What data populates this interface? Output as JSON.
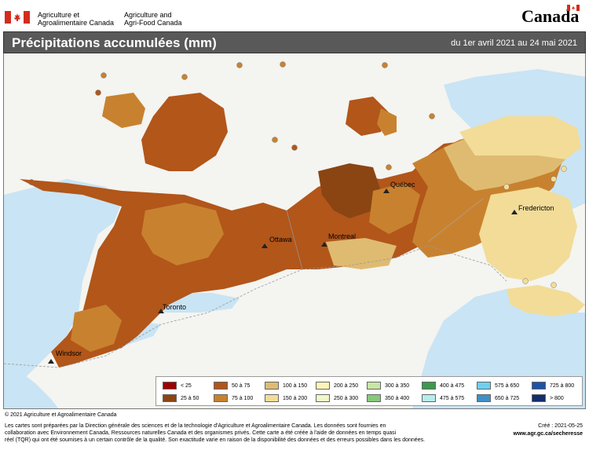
{
  "header": {
    "department_fr_line1": "Agriculture et",
    "department_fr_line2": "Agroalimentaire Canada",
    "department_en_line1": "Agriculture and",
    "department_en_line2": "Agri-Food Canada",
    "wordmark": "Canada"
  },
  "title": "Précipitations accumulées (mm)",
  "date_range": "du 1er avril 2021 au 24 mai 2021",
  "cities": [
    {
      "name": "Québec"
    },
    {
      "name": "Fredericton"
    },
    {
      "name": "Ottawa"
    },
    {
      "name": "Montreal"
    },
    {
      "name": "Toronto"
    },
    {
      "name": "Windsor"
    }
  ],
  "legend": {
    "items": [
      {
        "label": "< 25",
        "color": "#9c0000"
      },
      {
        "label": "25 à 50",
        "color": "#8a4513"
      },
      {
        "label": "50 à 75",
        "color": "#b2561a"
      },
      {
        "label": "75 à 100",
        "color": "#c8822f"
      },
      {
        "label": "100 à 150",
        "color": "#dfbb72"
      },
      {
        "label": "150 à 200",
        "color": "#f2dc98"
      },
      {
        "label": "200 à 250",
        "color": "#fbf5b8"
      },
      {
        "label": "250 à 300",
        "color": "#f1f7c9"
      },
      {
        "label": "300 à 350",
        "color": "#c8e6a4"
      },
      {
        "label": "350 à 400",
        "color": "#87c87a"
      },
      {
        "label": "400 à 475",
        "color": "#3c9a4e"
      },
      {
        "label": "475 à 575",
        "color": "#b6ecec"
      },
      {
        "label": "575 à 650",
        "color": "#6ed0f0"
      },
      {
        "label": "650 à 725",
        "color": "#3f8fc6"
      },
      {
        "label": "725 à 800",
        "color": "#1c54a4"
      },
      {
        "label": "> 800",
        "color": "#132d6b"
      }
    ]
  },
  "footer": {
    "copyright": "© 2021 Agriculture et Agroalimentaire Canada",
    "line1": "Les cartes sont préparées par la Direction générale des sciences et de la technologie d'Agriculture et Agroalimentaire Canada. Les données sont fournies en",
    "line2": "collaboration avec Environnement Canada, Ressources naturelles Canada et des organismes privés. Cette carte a été créée à l'aide de données en temps quasi",
    "line3": "réel (TQR) qui ont été soumises à un certain contrôle de la qualité. Son exactitude varie en raison de la disponibilité des données et des erreurs possibles dans les données.",
    "created": "Créé : 2021-05-25",
    "website": "www.agr.gc.ca/secheresse"
  },
  "colors": {
    "water": "#c9e4f4",
    "land": "#f4f4f0",
    "title_bar": "#595959"
  }
}
